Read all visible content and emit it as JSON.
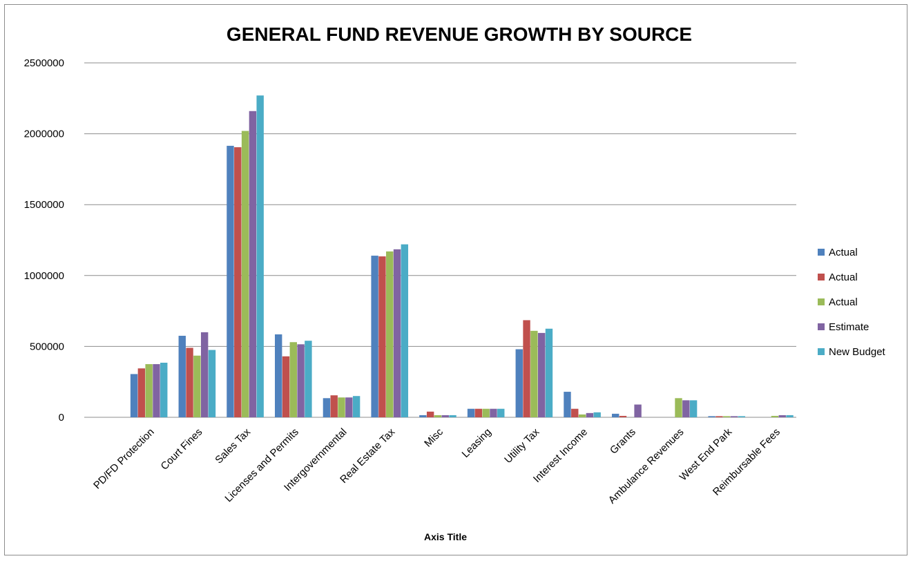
{
  "chart_data": {
    "type": "bar",
    "title": "GENERAL FUND REVENUE GROWTH BY SOURCE",
    "xlabel": "Axis Title",
    "ylabel": "",
    "ylim": [
      0,
      2500000
    ],
    "yticks": [
      "0",
      "500000",
      "1000000",
      "1500000",
      "2000000",
      "2500000"
    ],
    "grid": true,
    "legend_position": "right",
    "categories": [
      "PD/FD Protection",
      "Court Fines",
      "Sales Tax",
      "Licenses and Permits",
      "Intergovernmental",
      "Real Estate Tax",
      "Misc",
      "Leasing",
      "Utility Tax",
      "Interest Income",
      "Grants",
      "Ambulance Revenues",
      "West End Park",
      "Reimbursable Fees"
    ],
    "series": [
      {
        "name": "Actual",
        "color": "#4F81BD",
        "values": [
          305000,
          575000,
          1915000,
          585000,
          135000,
          1140000,
          15000,
          60000,
          480000,
          180000,
          25000,
          0,
          8000,
          0
        ]
      },
      {
        "name": "Actual",
        "color": "#C0504D",
        "values": [
          345000,
          490000,
          1905000,
          430000,
          155000,
          1135000,
          40000,
          60000,
          685000,
          60000,
          10000,
          0,
          8000,
          0
        ]
      },
      {
        "name": "Actual",
        "color": "#9BBB59",
        "values": [
          375000,
          435000,
          2020000,
          530000,
          140000,
          1170000,
          15000,
          60000,
          610000,
          20000,
          0,
          135000,
          8000,
          10000
        ]
      },
      {
        "name": "Estimate",
        "color": "#8064A2",
        "values": [
          375000,
          600000,
          2160000,
          515000,
          140000,
          1185000,
          15000,
          60000,
          595000,
          30000,
          90000,
          120000,
          8000,
          15000
        ]
      },
      {
        "name": "New Budget",
        "color": "#4BACC6",
        "values": [
          385000,
          475000,
          2270000,
          540000,
          150000,
          1220000,
          15000,
          60000,
          625000,
          35000,
          0,
          120000,
          8000,
          15000
        ]
      }
    ]
  }
}
